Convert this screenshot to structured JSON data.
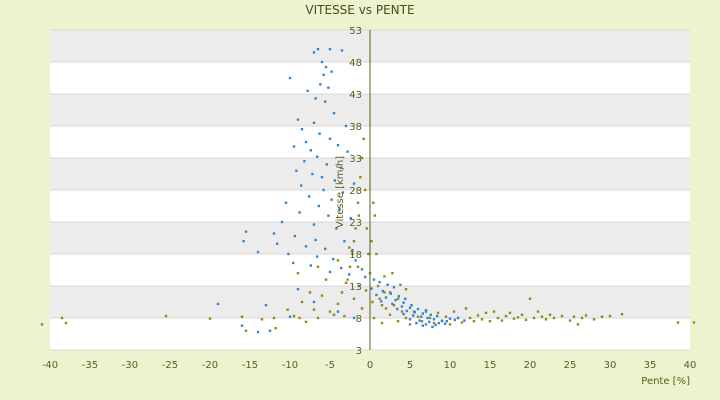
{
  "chart_data": {
    "type": "scatter",
    "title": "VITESSE vs PENTE",
    "xlabel": "Pente [%]",
    "ylabel": "Vitesse [km/h]",
    "xlim": [
      -40,
      40
    ],
    "ylim": [
      3,
      53
    ],
    "x_ticks": [
      "-40",
      "-35",
      "-30",
      "-25",
      "-20",
      "-15",
      "-10",
      "-5",
      "0",
      "5",
      "10",
      "15",
      "20",
      "25",
      "30",
      "35",
      "40"
    ],
    "y_ticks": [
      "3",
      "8",
      "13",
      "18",
      "23",
      "28",
      "33",
      "38",
      "43",
      "48",
      "53"
    ],
    "grid": true,
    "banded_background": true,
    "colors": {
      "background": "#eef3cf",
      "plot_white_band": "#ffffff",
      "plot_grey_band": "#ececec",
      "axis": "#5c5c1a",
      "series_blue": "#2f86d6",
      "series_olive": "#8c8c14"
    },
    "series": [
      {
        "color": "#8c8c14",
        "points": [
          [
            -41,
            7
          ],
          [
            -38.5,
            8
          ],
          [
            -38,
            7.2
          ],
          [
            -25.5,
            8.3
          ],
          [
            -20,
            7.9
          ],
          [
            -16,
            8.2
          ],
          [
            -15.5,
            6
          ],
          [
            -13.5,
            7.8
          ],
          [
            -12,
            8
          ],
          [
            -11.8,
            6.4
          ],
          [
            -10.3,
            9.3
          ],
          [
            -9.5,
            8.3
          ],
          [
            -8.8,
            8
          ],
          [
            -8,
            7.4
          ],
          [
            -7,
            9.3
          ],
          [
            -6.5,
            8
          ],
          [
            -6,
            11.5
          ],
          [
            -5,
            9
          ],
          [
            -4.5,
            8.5
          ],
          [
            -4,
            10.2
          ],
          [
            -3.5,
            12
          ],
          [
            -3.2,
            8.3
          ],
          [
            -2.8,
            14
          ],
          [
            -2.5,
            16
          ],
          [
            -2.2,
            18
          ],
          [
            -2,
            20
          ],
          [
            -1.8,
            22
          ],
          [
            -1.5,
            26
          ],
          [
            -1.2,
            30
          ],
          [
            -1,
            33
          ],
          [
            -0.8,
            36
          ],
          [
            -0.6,
            28
          ],
          [
            -0.4,
            22
          ],
          [
            -0.2,
            18
          ],
          [
            0,
            15
          ],
          [
            0.2,
            20
          ],
          [
            0.4,
            26
          ],
          [
            0.6,
            24
          ],
          [
            0.8,
            18
          ],
          [
            1,
            13
          ],
          [
            1.2,
            11
          ],
          [
            1.5,
            10
          ],
          [
            1.8,
            12
          ],
          [
            2,
            9.5
          ],
          [
            2.5,
            8.5
          ],
          [
            3,
            10
          ],
          [
            3.5,
            7.5
          ],
          [
            4,
            9
          ],
          [
            4.5,
            8
          ],
          [
            5,
            7
          ],
          [
            5.5,
            9
          ],
          [
            6,
            8.2
          ],
          [
            6.5,
            7.5
          ],
          [
            7,
            9
          ],
          [
            7.5,
            8
          ],
          [
            8,
            7.2
          ],
          [
            8.5,
            8.8
          ],
          [
            9,
            7.5
          ],
          [
            9.5,
            8.2
          ],
          [
            10,
            7
          ],
          [
            10.5,
            9
          ],
          [
            11,
            8
          ],
          [
            11.5,
            7.3
          ],
          [
            12,
            9.5
          ],
          [
            12.5,
            8
          ],
          [
            13,
            7.5
          ],
          [
            13.5,
            8.4
          ],
          [
            14,
            7.8
          ],
          [
            14.5,
            8.8
          ],
          [
            15,
            7.5
          ],
          [
            15.5,
            9
          ],
          [
            16,
            8
          ],
          [
            16.5,
            7.6
          ],
          [
            17,
            8.3
          ],
          [
            17.5,
            8.8
          ],
          [
            18,
            7.9
          ],
          [
            18.5,
            8.1
          ],
          [
            19,
            8.5
          ],
          [
            19.5,
            7.7
          ],
          [
            20,
            11
          ],
          [
            20.5,
            8
          ],
          [
            21,
            9
          ],
          [
            21.5,
            8.2
          ],
          [
            22,
            7.8
          ],
          [
            22.5,
            8.5
          ],
          [
            23,
            8
          ],
          [
            24,
            8.3
          ],
          [
            25,
            7.6
          ],
          [
            25.5,
            8.2
          ],
          [
            26,
            7
          ],
          [
            26.5,
            8
          ],
          [
            27,
            8.4
          ],
          [
            28,
            7.8
          ],
          [
            29,
            8.2
          ],
          [
            30,
            8.3
          ],
          [
            31.5,
            8.6
          ],
          [
            38.5,
            7.3
          ],
          [
            40.5,
            7.3
          ],
          [
            -3,
            13.5
          ],
          [
            -2,
            11
          ],
          [
            -1,
            9.5
          ],
          [
            0.5,
            8
          ],
          [
            1.5,
            7.2
          ],
          [
            2.5,
            12
          ],
          [
            3.5,
            11
          ],
          [
            4.5,
            12.5
          ],
          [
            -5.5,
            14
          ],
          [
            -7.5,
            12
          ],
          [
            -8.5,
            10.5
          ],
          [
            -1.5,
            16
          ],
          [
            -0.5,
            12.3
          ],
          [
            0.3,
            10.5
          ],
          [
            1.8,
            14.5
          ],
          [
            2.8,
            15
          ],
          [
            3.8,
            13.2
          ],
          [
            -9,
            15
          ],
          [
            -6.5,
            16
          ],
          [
            -4,
            17
          ],
          [
            -2.6,
            19
          ],
          [
            -1.4,
            24
          ]
        ]
      },
      {
        "color": "#2f86d6",
        "points": [
          [
            -7,
            49.5
          ],
          [
            -6.5,
            50
          ],
          [
            -5,
            50
          ],
          [
            -3.5,
            49.8
          ],
          [
            -6,
            48
          ],
          [
            -5.5,
            47.2
          ],
          [
            -4.8,
            46.5
          ],
          [
            -5.8,
            46
          ],
          [
            -10,
            45.5
          ],
          [
            -6.2,
            44.5
          ],
          [
            -5.2,
            44
          ],
          [
            -7.8,
            43.5
          ],
          [
            -6.8,
            42.3
          ],
          [
            -5.6,
            41.8
          ],
          [
            -4.5,
            40
          ],
          [
            -9,
            39
          ],
          [
            -7,
            38.5
          ],
          [
            -3,
            38
          ],
          [
            -8.5,
            37.5
          ],
          [
            -6.3,
            36.8
          ],
          [
            -5,
            36
          ],
          [
            -8,
            35.5
          ],
          [
            -4,
            35
          ],
          [
            -9.5,
            34.8
          ],
          [
            -7.4,
            34.2
          ],
          [
            -2.8,
            34
          ],
          [
            -6.6,
            33.2
          ],
          [
            -8.2,
            32.5
          ],
          [
            -5.4,
            32
          ],
          [
            -3.6,
            31.5
          ],
          [
            -9.2,
            31
          ],
          [
            -7.2,
            30.5
          ],
          [
            -6,
            30
          ],
          [
            -4.4,
            29.5
          ],
          [
            -2,
            29
          ],
          [
            -8.6,
            28.7
          ],
          [
            -5.8,
            28
          ],
          [
            -3.4,
            27.6
          ],
          [
            -7.6,
            27
          ],
          [
            -4.8,
            26.5
          ],
          [
            -10.5,
            26
          ],
          [
            -6.4,
            25.5
          ],
          [
            -3.8,
            25
          ],
          [
            -8.8,
            24.5
          ],
          [
            -5.2,
            24
          ],
          [
            -2.4,
            23.6
          ],
          [
            -11,
            23
          ],
          [
            -7,
            22.6
          ],
          [
            -4.2,
            22
          ],
          [
            -15.5,
            21.5
          ],
          [
            -12,
            21.2
          ],
          [
            -9.4,
            20.8
          ],
          [
            -6.8,
            20.2
          ],
          [
            -3.2,
            20
          ],
          [
            -15.8,
            20
          ],
          [
            -11.6,
            19.6
          ],
          [
            -8,
            19.2
          ],
          [
            -5.6,
            18.8
          ],
          [
            -2.2,
            18.6
          ],
          [
            -14,
            18.3
          ],
          [
            -10.2,
            18
          ],
          [
            -6.6,
            17.6
          ],
          [
            -4.6,
            17.2
          ],
          [
            -1.8,
            17
          ],
          [
            -9.6,
            16.6
          ],
          [
            -7.4,
            16.2
          ],
          [
            -3.6,
            15.8
          ],
          [
            -1,
            15.6
          ],
          [
            -5,
            15.2
          ],
          [
            -2.6,
            14.8
          ],
          [
            -0.6,
            14.4
          ],
          [
            0.5,
            14
          ],
          [
            1.2,
            13.6
          ],
          [
            2.2,
            13.2
          ],
          [
            3,
            12.8
          ],
          [
            -1.4,
            13
          ],
          [
            0.2,
            12.6
          ],
          [
            1.6,
            12.2
          ],
          [
            2.6,
            11.8
          ],
          [
            3.6,
            11.4
          ],
          [
            4.4,
            11
          ],
          [
            0.8,
            11.6
          ],
          [
            2,
            11.2
          ],
          [
            3.2,
            10.8
          ],
          [
            4.2,
            10.4
          ],
          [
            5.2,
            10
          ],
          [
            1.4,
            10.6
          ],
          [
            2.8,
            10.2
          ],
          [
            4,
            9.8
          ],
          [
            5,
            9.6
          ],
          [
            6,
            9.4
          ],
          [
            7,
            9.2
          ],
          [
            3.4,
            9.4
          ],
          [
            4.6,
            9.1
          ],
          [
            5.6,
            8.9
          ],
          [
            6.6,
            8.7
          ],
          [
            7.6,
            8.5
          ],
          [
            8.4,
            8.3
          ],
          [
            4.2,
            8.6
          ],
          [
            5.4,
            8.4
          ],
          [
            6.4,
            8.2
          ],
          [
            7.2,
            8
          ],
          [
            8,
            7.8
          ],
          [
            9,
            7.6
          ],
          [
            10,
            7.9
          ],
          [
            5,
            7.8
          ],
          [
            6.2,
            7.6
          ],
          [
            7.4,
            7.4
          ],
          [
            8.6,
            7.2
          ],
          [
            9.6,
            7.5
          ],
          [
            10.6,
            7.7
          ],
          [
            5.8,
            7.2
          ],
          [
            7,
            7
          ],
          [
            8.2,
            6.9
          ],
          [
            9.4,
            7.1
          ],
          [
            6.6,
            6.8
          ],
          [
            7.8,
            6.6
          ],
          [
            11,
            8
          ],
          [
            11.8,
            7.6
          ],
          [
            -19,
            10.2
          ],
          [
            -16,
            6.8
          ],
          [
            -14,
            5.8
          ],
          [
            -12.5,
            6
          ],
          [
            -10,
            8.2
          ],
          [
            -7,
            10.5
          ],
          [
            -4,
            9
          ],
          [
            -13,
            10
          ],
          [
            -9,
            12.5
          ],
          [
            -2,
            8
          ]
        ]
      }
    ]
  }
}
